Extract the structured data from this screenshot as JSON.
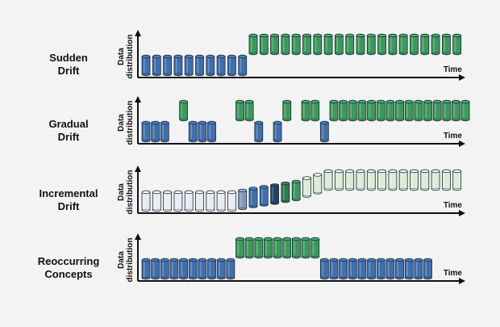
{
  "labels": {
    "y_axis": [
      "Data",
      "distribution"
    ],
    "x_axis": "Time"
  },
  "colors": {
    "blue": "#3f6fad",
    "green": "#3b9a5a",
    "light_blue": "#e6edf5",
    "mid_blue": "#7f9bbd",
    "navy": "#1f4168",
    "dark_green": "#2f7a4f",
    "light_green": "#d8edd4",
    "outline": "#1f2b3a"
  },
  "panels": [
    {
      "title": [
        "Sudden",
        "Drift"
      ],
      "bars": [
        {
          "c": "blue",
          "lv": 0
        },
        {
          "c": "blue",
          "lv": 0
        },
        {
          "c": "blue",
          "lv": 0
        },
        {
          "c": "blue",
          "lv": 0
        },
        {
          "c": "blue",
          "lv": 0
        },
        {
          "c": "blue",
          "lv": 0
        },
        {
          "c": "blue",
          "lv": 0
        },
        {
          "c": "blue",
          "lv": 0
        },
        {
          "c": "blue",
          "lv": 0
        },
        {
          "c": "blue",
          "lv": 0
        },
        {
          "c": "green",
          "lv": 1
        },
        {
          "c": "green",
          "lv": 1
        },
        {
          "c": "green",
          "lv": 1
        },
        {
          "c": "green",
          "lv": 1
        },
        {
          "c": "green",
          "lv": 1
        },
        {
          "c": "green",
          "lv": 1
        },
        {
          "c": "green",
          "lv": 1
        },
        {
          "c": "green",
          "lv": 1
        },
        {
          "c": "green",
          "lv": 1
        },
        {
          "c": "green",
          "lv": 1
        },
        {
          "c": "green",
          "lv": 1
        },
        {
          "c": "green",
          "lv": 1
        },
        {
          "c": "green",
          "lv": 1
        },
        {
          "c": "green",
          "lv": 1
        },
        {
          "c": "green",
          "lv": 1
        },
        {
          "c": "green",
          "lv": 1
        },
        {
          "c": "green",
          "lv": 1
        },
        {
          "c": "green",
          "lv": 1
        },
        {
          "c": "green",
          "lv": 1
        },
        {
          "c": "green",
          "lv": 1
        }
      ]
    },
    {
      "title": [
        "Gradual",
        "Drift"
      ],
      "bars": [
        {
          "c": "blue",
          "lv": 0
        },
        {
          "c": "blue",
          "lv": 0
        },
        {
          "c": "blue",
          "lv": 0
        },
        {
          "c": "green",
          "lv": 1
        },
        {
          "c": "blue",
          "lv": 0
        },
        {
          "c": "blue",
          "lv": 0
        },
        {
          "c": "blue",
          "lv": 0
        },
        {
          "c": "green",
          "lv": 1
        },
        {
          "c": "green",
          "lv": 1
        },
        {
          "c": "blue",
          "lv": 0
        },
        {
          "c": "blue",
          "lv": 0
        },
        {
          "c": "green",
          "lv": 1
        },
        {
          "c": "green",
          "lv": 1
        },
        {
          "c": "green",
          "lv": 1
        },
        {
          "c": "blue",
          "lv": 0
        },
        {
          "c": "green",
          "lv": 1
        },
        {
          "c": "green",
          "lv": 1
        },
        {
          "c": "green",
          "lv": 1
        },
        {
          "c": "green",
          "lv": 1
        },
        {
          "c": "green",
          "lv": 1
        },
        {
          "c": "green",
          "lv": 1
        },
        {
          "c": "green",
          "lv": 1
        },
        {
          "c": "green",
          "lv": 1
        },
        {
          "c": "green",
          "lv": 1
        },
        {
          "c": "green",
          "lv": 1
        },
        {
          "c": "green",
          "lv": 1
        },
        {
          "c": "green",
          "lv": 1
        },
        {
          "c": "green",
          "lv": 1
        },
        {
          "c": "green",
          "lv": 1
        },
        {
          "c": "green",
          "lv": 1
        }
      ],
      "slots": [
        0,
        1,
        2,
        4,
        5,
        6,
        7,
        10,
        11,
        12,
        14,
        15,
        17,
        18,
        19,
        20,
        21,
        22,
        23,
        24,
        25,
        26,
        27,
        28,
        29,
        30,
        31,
        32,
        33,
        34
      ]
    },
    {
      "title": [
        "Incremental",
        "Drift"
      ],
      "bars": [
        {
          "c": "light_blue",
          "lv": 0
        },
        {
          "c": "light_blue",
          "lv": 0
        },
        {
          "c": "light_blue",
          "lv": 0
        },
        {
          "c": "light_blue",
          "lv": 0
        },
        {
          "c": "light_blue",
          "lv": 0
        },
        {
          "c": "light_blue",
          "lv": 0
        },
        {
          "c": "light_blue",
          "lv": 0
        },
        {
          "c": "light_blue",
          "lv": 0
        },
        {
          "c": "light_blue",
          "lv": 0
        },
        {
          "c": "mid_blue",
          "lv": 0.08
        },
        {
          "c": "blue",
          "lv": 0.17
        },
        {
          "c": "blue",
          "lv": 0.25
        },
        {
          "c": "navy",
          "lv": 0.33
        },
        {
          "c": "dark_green",
          "lv": 0.42
        },
        {
          "c": "green",
          "lv": 0.5
        },
        {
          "c": "light_green",
          "lv": 0.67
        },
        {
          "c": "light_green",
          "lv": 0.83
        },
        {
          "c": "light_green",
          "lv": 1
        },
        {
          "c": "light_green",
          "lv": 1
        },
        {
          "c": "light_green",
          "lv": 1
        },
        {
          "c": "light_green",
          "lv": 1
        },
        {
          "c": "light_green",
          "lv": 1
        },
        {
          "c": "light_green",
          "lv": 1
        },
        {
          "c": "light_green",
          "lv": 1
        },
        {
          "c": "light_green",
          "lv": 1
        },
        {
          "c": "light_green",
          "lv": 1
        },
        {
          "c": "light_green",
          "lv": 1
        },
        {
          "c": "light_green",
          "lv": 1
        },
        {
          "c": "light_green",
          "lv": 1
        },
        {
          "c": "light_green",
          "lv": 1
        }
      ]
    },
    {
      "title": [
        "Reoccurring",
        "Concepts"
      ],
      "bars": [
        {
          "c": "blue",
          "lv": 0
        },
        {
          "c": "blue",
          "lv": 0
        },
        {
          "c": "blue",
          "lv": 0
        },
        {
          "c": "blue",
          "lv": 0
        },
        {
          "c": "blue",
          "lv": 0
        },
        {
          "c": "blue",
          "lv": 0
        },
        {
          "c": "blue",
          "lv": 0
        },
        {
          "c": "blue",
          "lv": 0
        },
        {
          "c": "blue",
          "lv": 0
        },
        {
          "c": "blue",
          "lv": 0
        },
        {
          "c": "green",
          "lv": 1
        },
        {
          "c": "green",
          "lv": 1
        },
        {
          "c": "green",
          "lv": 1
        },
        {
          "c": "green",
          "lv": 1
        },
        {
          "c": "green",
          "lv": 1
        },
        {
          "c": "green",
          "lv": 1
        },
        {
          "c": "green",
          "lv": 1
        },
        {
          "c": "green",
          "lv": 1
        },
        {
          "c": "green",
          "lv": 1
        },
        {
          "c": "blue",
          "lv": 0
        },
        {
          "c": "blue",
          "lv": 0
        },
        {
          "c": "blue",
          "lv": 0
        },
        {
          "c": "blue",
          "lv": 0
        },
        {
          "c": "blue",
          "lv": 0
        },
        {
          "c": "blue",
          "lv": 0
        },
        {
          "c": "blue",
          "lv": 0
        },
        {
          "c": "blue",
          "lv": 0
        },
        {
          "c": "blue",
          "lv": 0
        },
        {
          "c": "blue",
          "lv": 0
        },
        {
          "c": "blue",
          "lv": 0
        },
        {
          "c": "blue",
          "lv": 0
        }
      ],
      "slots": [
        0,
        1,
        2,
        3,
        4,
        5,
        6,
        7,
        8,
        9,
        10,
        11,
        12,
        13,
        14,
        15,
        16,
        17,
        18,
        19,
        20,
        21,
        22,
        23,
        24,
        25,
        26,
        27,
        28,
        29,
        30
      ]
    }
  ]
}
